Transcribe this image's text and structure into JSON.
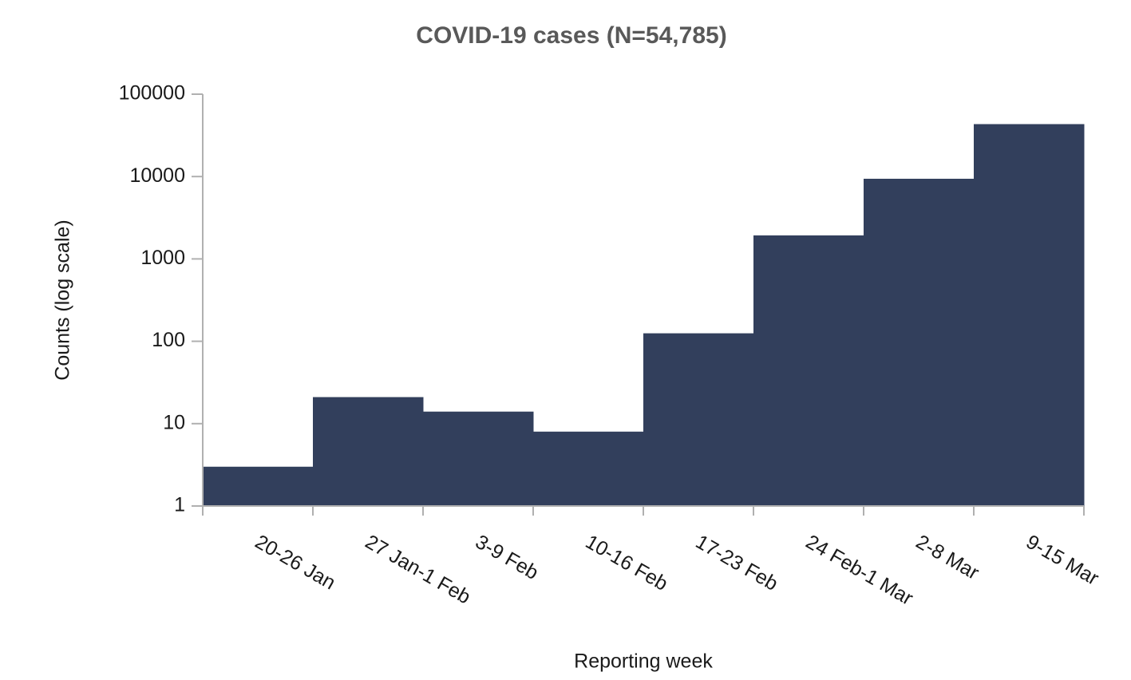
{
  "chart_data": {
    "type": "bar",
    "title": "COVID-19 cases (N=54,785)",
    "x_label": "Reporting week",
    "y_label": "Counts (log scale)",
    "categories": [
      "20-26 Jan",
      "27 Jan-1 Feb",
      "3-9 Feb",
      "10-16 Feb",
      "17-23 Feb",
      "24 Feb-1 Mar",
      "2-8 Mar",
      "9-15 Mar"
    ],
    "values": [
      3,
      21,
      14,
      8,
      125,
      1930,
      9400,
      43300
    ],
    "color": "#323f5c",
    "log_scale": true,
    "ylim": [
      1,
      100000
    ],
    "yticks": [
      1,
      10,
      100,
      1000,
      10000,
      100000
    ],
    "grid": false
  }
}
